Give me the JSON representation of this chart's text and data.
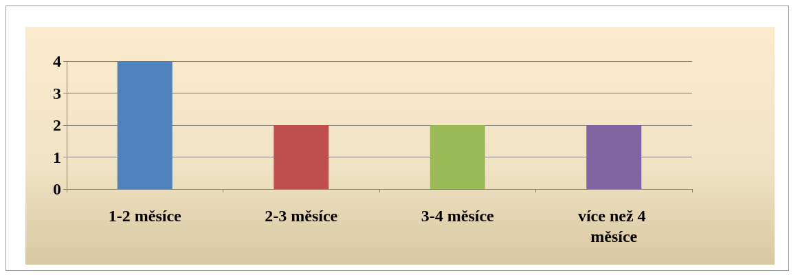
{
  "chart_data": {
    "type": "bar",
    "categories": [
      "1-2 měsíce",
      "2-3 měsíce",
      "3-4 měsíce",
      "více než 4 měsíce"
    ],
    "values": [
      4,
      2,
      2,
      2
    ],
    "colors": [
      "#4f81bd",
      "#c0504d",
      "#9bbb59",
      "#8064a2"
    ],
    "ylim": [
      0,
      4
    ],
    "yticks": [
      0,
      1,
      2,
      3,
      4
    ],
    "grid": "y"
  }
}
